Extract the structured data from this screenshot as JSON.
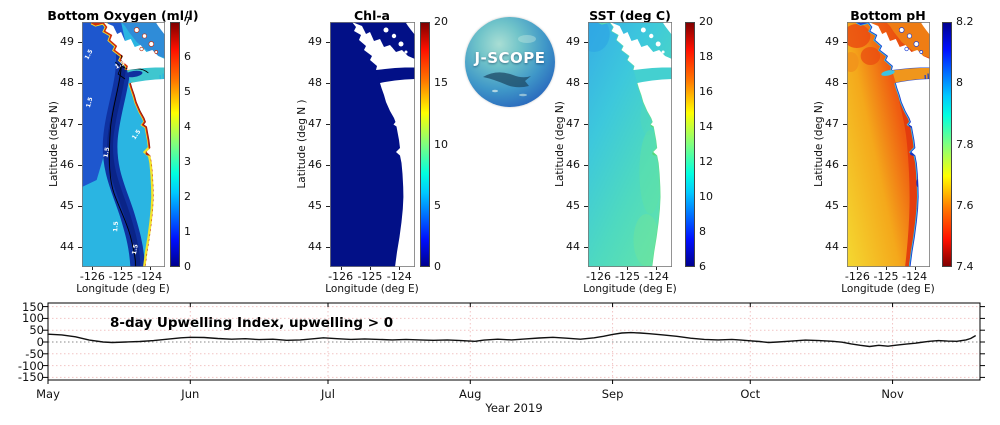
{
  "logo": {
    "label": "J-SCOPE"
  },
  "panels": [
    {
      "key": "oxygen",
      "title": "Bottom Oxygen (ml/l)",
      "ylabel": "Latitude (deg N)",
      "xlabel": "Longitude (deg E)",
      "lat_ticks": [
        "49",
        "48",
        "47",
        "46",
        "45",
        "44"
      ],
      "lon_ticks": [
        "-126",
        "-125",
        "-124"
      ],
      "colorbar_ticks": [
        "7",
        "6",
        "5",
        "4",
        "3",
        "2",
        "1",
        "0"
      ],
      "contour_label": "1.5"
    },
    {
      "key": "chl",
      "title": "Chl-a",
      "ylabel": "Latitude (deg N )",
      "xlabel": "Longitude (deg E)",
      "lat_ticks": [
        "49",
        "48",
        "47",
        "46",
        "45",
        "44"
      ],
      "lon_ticks": [
        "-126",
        "-125",
        "-124"
      ],
      "colorbar_ticks": [
        "20",
        "15",
        "10",
        "5",
        "0"
      ]
    },
    {
      "key": "sst",
      "title": "SST (deg C)",
      "ylabel": "Latitude (deg N)",
      "xlabel": "Longitude (deg E)",
      "lat_ticks": [
        "49",
        "48",
        "47",
        "46",
        "45",
        "44"
      ],
      "lon_ticks": [
        "-126",
        "-125",
        "-124"
      ],
      "colorbar_ticks": [
        "20",
        "18",
        "16",
        "14",
        "12",
        "10",
        "8",
        "6"
      ]
    },
    {
      "key": "ph",
      "title": "Bottom pH",
      "ylabel": "Latitude (deg N)",
      "xlabel": "Longitude (deg E)",
      "lat_ticks": [
        "49",
        "48",
        "47",
        "46",
        "45",
        "44"
      ],
      "lon_ticks": [
        "-126",
        "-125",
        "-124"
      ],
      "colorbar_ticks": [
        "8.2",
        "8",
        "7.8",
        "7.6",
        "7.4"
      ]
    }
  ],
  "timeseries": {
    "annotation": "8-day Upwelling Index, upwelling > 0",
    "xlabel": "Year 2019"
  },
  "chart_data": [
    {
      "type": "heatmap",
      "title": "Bottom Oxygen (ml/l)",
      "xlabel": "Longitude (deg E)",
      "ylabel": "Latitude (deg N)",
      "x_ticks": [
        -126,
        -125,
        -124
      ],
      "y_ticks": [
        44,
        45,
        46,
        47,
        48,
        49
      ],
      "colormap": "jet",
      "colorbar_range": [
        0,
        7
      ],
      "colorbar_ticks": [
        0,
        1,
        2,
        3,
        4,
        5,
        6,
        7
      ],
      "contour_level": 1.5
    },
    {
      "type": "heatmap",
      "title": "Chl-a",
      "xlabel": "Longitude (deg E)",
      "ylabel": "Latitude (deg N )",
      "x_ticks": [
        -126,
        -125,
        -124
      ],
      "y_ticks": [
        44,
        45,
        46,
        47,
        48,
        49
      ],
      "colormap": "jet",
      "colorbar_range": [
        0,
        20
      ],
      "colorbar_ticks": [
        0,
        5,
        10,
        15,
        20
      ]
    },
    {
      "type": "heatmap",
      "title": "SST (deg C)",
      "xlabel": "Longitude (deg E)",
      "ylabel": "Latitude (deg N)",
      "x_ticks": [
        -126,
        -125,
        -124
      ],
      "y_ticks": [
        44,
        45,
        46,
        47,
        48,
        49
      ],
      "colormap": "jet",
      "colorbar_range": [
        6,
        20
      ],
      "colorbar_ticks": [
        6,
        8,
        10,
        12,
        14,
        16,
        18,
        20
      ]
    },
    {
      "type": "heatmap",
      "title": "Bottom pH",
      "xlabel": "Longitude (deg E)",
      "ylabel": "Latitude (deg N)",
      "x_ticks": [
        -126,
        -125,
        -124
      ],
      "y_ticks": [
        44,
        45,
        46,
        47,
        48,
        49
      ],
      "colormap": "jet reversed",
      "colorbar_range": [
        7.4,
        8.2
      ],
      "colorbar_ticks": [
        7.4,
        7.6,
        7.8,
        8.0,
        8.2
      ]
    },
    {
      "type": "line",
      "title": "8-day Upwelling Index, upwelling > 0",
      "xlabel": "Year 2019",
      "x_unit": "days since May 1",
      "ylim": [
        -165,
        160
      ],
      "yticks": [
        150,
        100,
        50,
        0,
        -50,
        -100,
        -150
      ],
      "zero_line": true,
      "month_ticks": [
        {
          "label": "May",
          "day": 0
        },
        {
          "label": "Jun",
          "day": 31
        },
        {
          "label": "Jul",
          "day": 61
        },
        {
          "label": "Aug",
          "day": 92
        },
        {
          "label": "Sep",
          "day": 123
        },
        {
          "label": "Oct",
          "day": 153
        },
        {
          "label": "Nov",
          "day": 184
        }
      ],
      "x": [
        0,
        3,
        6,
        9,
        12,
        14,
        17,
        20,
        23,
        26,
        29,
        31,
        34,
        37,
        40,
        43,
        46,
        49,
        52,
        55,
        58,
        60,
        63,
        66,
        69,
        72,
        75,
        78,
        81,
        84,
        87,
        90,
        93,
        95,
        98,
        101,
        104,
        107,
        110,
        113,
        116,
        119,
        121,
        123,
        125,
        127,
        129,
        131,
        134,
        137,
        140,
        143,
        146,
        149,
        151,
        153,
        155,
        157,
        159,
        162,
        165,
        168,
        171,
        173,
        175,
        177,
        179,
        181,
        183,
        185,
        187,
        189,
        190,
        192,
        194,
        196,
        198,
        200,
        201,
        202
      ],
      "y": [
        33,
        30,
        22,
        8,
        0,
        -2,
        0,
        2,
        6,
        12,
        18,
        20,
        19,
        15,
        12,
        14,
        10,
        12,
        7,
        9,
        14,
        18,
        14,
        11,
        13,
        11,
        9,
        11,
        9,
        7,
        9,
        6,
        3,
        8,
        12,
        9,
        13,
        17,
        20,
        16,
        12,
        18,
        24,
        32,
        38,
        40,
        38,
        35,
        30,
        24,
        16,
        11,
        9,
        11,
        8,
        5,
        2,
        -2,
        0,
        4,
        8,
        6,
        3,
        -1,
        -8,
        -14,
        -19,
        -14,
        -18,
        -13,
        -9,
        -5,
        -2,
        3,
        6,
        4,
        3,
        9,
        15,
        26
      ]
    }
  ]
}
